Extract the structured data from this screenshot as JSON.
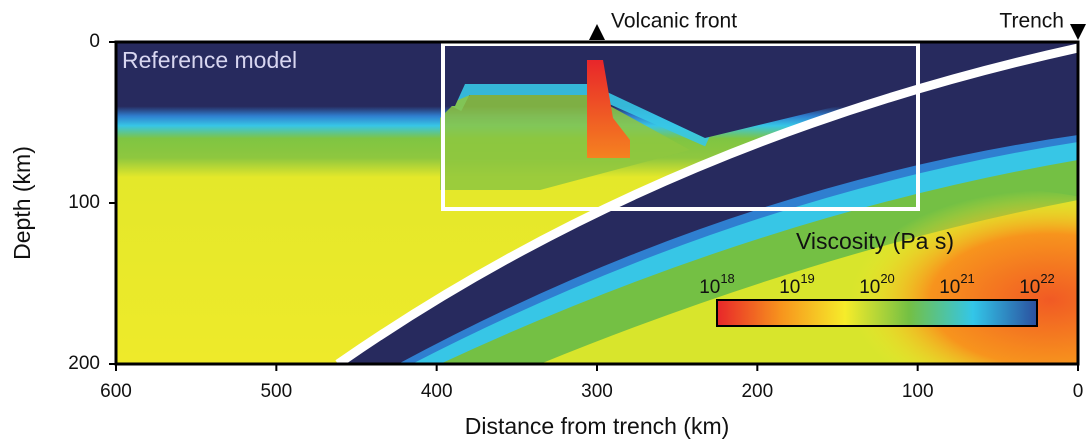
{
  "chart_data": {
    "type": "section",
    "title": "Reference model",
    "xlabel": "Distance from trench (km)",
    "ylabel": "Depth (km)",
    "xlim": [
      600,
      0
    ],
    "ylim": [
      200,
      0
    ],
    "xticks": [
      600,
      500,
      400,
      300,
      200,
      100,
      0
    ],
    "yticks": [
      0,
      100,
      200
    ],
    "annotations": [
      {
        "text": "Volcanic front",
        "x": 300
      },
      {
        "text": "Trench",
        "x": 0
      }
    ],
    "colorbar": {
      "title": "Viscosity (Pa s)",
      "log": true,
      "base_label": "10",
      "lim": [
        18,
        22
      ],
      "ticks": [
        18,
        19,
        20,
        21,
        22
      ],
      "colors": [
        "#e8262a",
        "#f7941d",
        "#f6ec2a",
        "#74c044",
        "#33c6e8",
        "#2b4f9e"
      ]
    }
  }
}
